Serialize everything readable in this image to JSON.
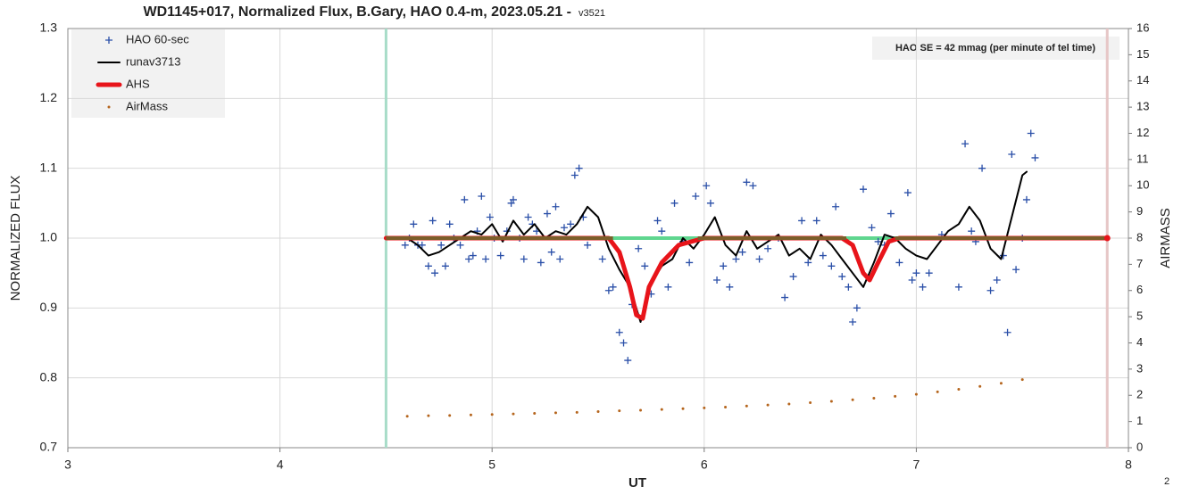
{
  "chart_data": {
    "type": "scatter",
    "title": "WD1145+017, Normalized Flux, B.Gary, HAO 0.4-m, 2023.05.21 -",
    "subtitle": "v3521",
    "x_label": "UT",
    "y_label": "NORMALIZED FLUX",
    "y2_label": "AIRMASS",
    "annotation": "HAO SE =  42 mmag (per minute of tel time)",
    "page_number": "2",
    "xlim": [
      3,
      8
    ],
    "xticks": [
      3,
      4,
      5,
      6,
      7,
      8
    ],
    "ylim": [
      0.7,
      1.3
    ],
    "yticks": [
      0.7,
      0.8,
      0.9,
      {
        "value": 1,
        "label": "1.0"
      },
      1.1,
      1.2,
      1.3
    ],
    "y2lim": [
      0,
      16
    ],
    "y2ticks": [
      0,
      1,
      2,
      3,
      4,
      5,
      6,
      7,
      8,
      9,
      10,
      11,
      12,
      13,
      14,
      15,
      16
    ],
    "grid": true,
    "legend": "top-left",
    "vlines": [
      {
        "x": 4.5,
        "color": "#a8dcc8"
      },
      {
        "x": 7.9,
        "color": "#e6c6c6"
      }
    ],
    "hlines": [
      {
        "y": 1,
        "x": [
          4.5,
          7.9
        ],
        "color": "#5fd68f"
      },
      {
        "y": 1,
        "x": [
          4.5,
          5.57
        ],
        "color": "#7b5e2a"
      },
      {
        "y": 1,
        "x": [
          5.97,
          6.67
        ],
        "color": "#7b5e2a"
      },
      {
        "y": 1,
        "x": [
          6.9,
          7.9
        ],
        "color": "#7b5e2a"
      }
    ],
    "series": [
      {
        "name": "HAO 60-sec",
        "type": "scatter",
        "color": "#2a4fa8",
        "x": [
          4.59,
          4.61,
          4.63,
          4.65,
          4.67,
          4.7,
          4.72,
          4.73,
          4.76,
          4.78,
          4.8,
          4.82,
          4.85,
          4.87,
          4.89,
          4.91,
          4.93,
          4.95,
          4.97,
          4.99,
          5.01,
          5.04,
          5.07,
          5.09,
          5.1,
          5.13,
          5.15,
          5.17,
          5.19,
          5.21,
          5.23,
          5.26,
          5.28,
          5.3,
          5.32,
          5.34,
          5.37,
          5.39,
          5.41,
          5.43,
          5.45,
          5.52,
          5.55,
          5.57,
          5.6,
          5.62,
          5.64,
          5.66,
          5.69,
          5.72,
          5.75,
          5.78,
          5.8,
          5.83,
          5.86,
          5.9,
          5.93,
          5.96,
          6.01,
          6.03,
          6.06,
          6.09,
          6.12,
          6.15,
          6.18,
          6.2,
          6.23,
          6.26,
          6.3,
          6.35,
          6.38,
          6.42,
          6.46,
          6.49,
          6.53,
          6.56,
          6.6,
          6.62,
          6.65,
          6.68,
          6.7,
          6.72,
          6.75,
          6.79,
          6.82,
          6.85,
          6.88,
          6.92,
          6.96,
          6.98,
          7.0,
          7.03,
          7.06,
          7.12,
          7.2,
          7.23,
          7.26,
          7.28,
          7.31,
          7.35,
          7.38,
          7.41,
          7.43,
          7.45,
          7.47,
          7.5,
          7.52,
          7.54,
          7.56
        ],
        "values": [
          0.99,
          1.0,
          1.02,
          0.99,
          0.99,
          0.96,
          1.025,
          0.95,
          0.99,
          0.96,
          1.02,
          1.0,
          0.99,
          1.055,
          0.97,
          0.975,
          1.01,
          1.06,
          0.97,
          1.03,
          1.0,
          0.975,
          1.01,
          1.05,
          1.055,
          1.0,
          0.97,
          1.03,
          1.02,
          1.01,
          0.965,
          1.035,
          0.98,
          1.045,
          0.97,
          1.015,
          1.02,
          1.09,
          1.1,
          1.03,
          0.99,
          0.97,
          0.925,
          0.93,
          0.865,
          0.85,
          0.825,
          0.905,
          0.985,
          0.96,
          0.92,
          1.025,
          1.01,
          0.93,
          1.05,
          0.995,
          0.965,
          1.06,
          1.075,
          1.05,
          0.94,
          0.96,
          0.93,
          0.97,
          0.98,
          1.08,
          1.075,
          0.97,
          0.985,
          1.0,
          0.915,
          0.945,
          1.025,
          0.965,
          1.025,
          0.975,
          0.96,
          1.045,
          0.945,
          0.93,
          0.88,
          0.9,
          1.07,
          1.015,
          0.995,
          0.99,
          1.035,
          0.965,
          1.065,
          0.94,
          0.95,
          0.93,
          0.95,
          1.005,
          0.93,
          1.135,
          1.01,
          0.995,
          1.1,
          0.925,
          0.94,
          0.975,
          0.865,
          1.12,
          0.955,
          1.0,
          1.055,
          1.15,
          1.115
        ]
      },
      {
        "name": "runav3713",
        "type": "line",
        "color": "#000000",
        "x": [
          4.6,
          4.65,
          4.7,
          4.75,
          4.8,
          4.85,
          4.9,
          4.95,
          5.0,
          5.05,
          5.1,
          5.15,
          5.2,
          5.25,
          5.3,
          5.35,
          5.4,
          5.45,
          5.5,
          5.55,
          5.6,
          5.65,
          5.7,
          5.75,
          5.8,
          5.85,
          5.9,
          5.95,
          6.0,
          6.05,
          6.1,
          6.15,
          6.2,
          6.25,
          6.3,
          6.35,
          6.4,
          6.45,
          6.5,
          6.55,
          6.6,
          6.65,
          6.7,
          6.75,
          6.8,
          6.85,
          6.9,
          6.95,
          7.0,
          7.05,
          7.1,
          7.15,
          7.2,
          7.25,
          7.3,
          7.35,
          7.4,
          7.45,
          7.5,
          7.52
        ],
        "values": [
          1.0,
          0.99,
          0.975,
          0.98,
          0.99,
          1.0,
          1.01,
          1.005,
          1.02,
          0.995,
          1.025,
          1.005,
          1.02,
          1.0,
          1.01,
          1.005,
          1.02,
          1.045,
          1.03,
          0.985,
          0.955,
          0.93,
          0.88,
          0.935,
          0.96,
          0.97,
          1.0,
          0.985,
          1.005,
          1.03,
          0.99,
          0.975,
          1.01,
          0.985,
          0.995,
          1.005,
          0.975,
          0.985,
          0.97,
          1.005,
          0.99,
          0.97,
          0.95,
          0.93,
          0.965,
          1.005,
          1.0,
          0.985,
          0.975,
          0.97,
          0.99,
          1.01,
          1.02,
          1.045,
          1.025,
          0.985,
          0.97,
          1.03,
          1.09,
          1.095
        ]
      },
      {
        "name": "AHS",
        "type": "line",
        "color": "#e8141a",
        "width": 5,
        "x": [
          4.5,
          5.55,
          5.6,
          5.65,
          5.68,
          5.71,
          5.74,
          5.8,
          5.88,
          6.0,
          6.65,
          6.7,
          6.75,
          6.78,
          6.82,
          6.87,
          6.92,
          7.9
        ],
        "values": [
          1,
          1,
          0.98,
          0.93,
          0.89,
          0.885,
          0.93,
          0.965,
          0.99,
          1,
          1,
          0.99,
          0.95,
          0.94,
          0.965,
          0.995,
          1,
          1
        ]
      },
      {
        "name": "AirMass",
        "type": "dots",
        "axis": "y2",
        "color": "#b5651d",
        "x": [
          4.6,
          4.7,
          4.8,
          4.9,
          5.0,
          5.1,
          5.2,
          5.3,
          5.4,
          5.5,
          5.6,
          5.7,
          5.8,
          5.9,
          6.0,
          6.1,
          6.2,
          6.3,
          6.4,
          6.5,
          6.6,
          6.7,
          6.8,
          6.9,
          7.0,
          7.1,
          7.2,
          7.3,
          7.4,
          7.5
        ],
        "values": [
          1.2,
          1.22,
          1.23,
          1.25,
          1.27,
          1.29,
          1.31,
          1.33,
          1.35,
          1.38,
          1.41,
          1.43,
          1.46,
          1.49,
          1.52,
          1.55,
          1.59,
          1.63,
          1.67,
          1.72,
          1.77,
          1.83,
          1.89,
          1.96,
          2.04,
          2.13,
          2.23,
          2.34,
          2.46,
          2.6
        ]
      }
    ]
  }
}
